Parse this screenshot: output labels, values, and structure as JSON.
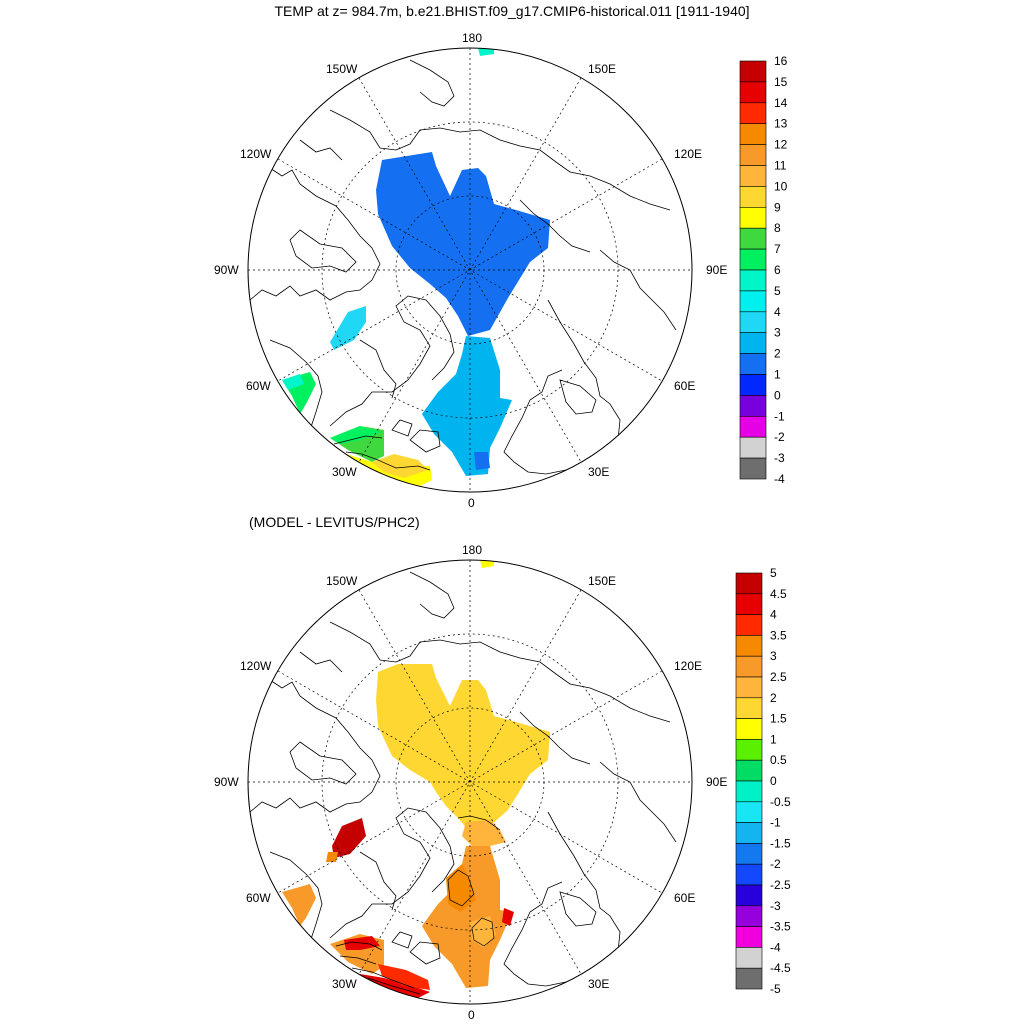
{
  "title": "TEMP at z= 984.7m, b.e21.BHIST.f09_g17.CMIP6-historical.011 [1911-1940]",
  "subtitle": "(MODEL - LEVITUS/PHC2)",
  "longitude_labels": {
    "top": "180",
    "bottom": "0",
    "left": "90W",
    "right": "90E",
    "upper_left_1": "150W",
    "upper_left_2": "120W",
    "upper_right_1": "150E",
    "upper_right_2": "120E",
    "lower_left_1": "60W",
    "lower_left_2": "30W",
    "lower_right_1": "60E",
    "lower_right_2": "30E"
  },
  "colorbar_top": {
    "labels": [
      "16",
      "15",
      "14",
      "13",
      "12",
      "11",
      "10",
      "9",
      "8",
      "7",
      "6",
      "5",
      "4",
      "3",
      "2",
      "1",
      "0",
      "-1",
      "-2",
      "-3",
      "-4"
    ],
    "colors": [
      "#c40000",
      "#e60000",
      "#ff2a00",
      "#f58a00",
      "#f79a2a",
      "#ffb43c",
      "#ffd733",
      "#ffff00",
      "#3fd93f",
      "#00f060",
      "#00f5c8",
      "#00f0f0",
      "#20d8f5",
      "#00b4f0",
      "#1470f0",
      "#0028ff",
      "#7800dc",
      "#e600e6",
      "#d2d2d2",
      "#6e6e6e"
    ]
  },
  "colorbar_bottom": {
    "labels": [
      "5",
      "4.5",
      "4",
      "3.5",
      "3",
      "2.5",
      "2",
      "1.5",
      "1",
      "0.5",
      "0",
      "-0.5",
      "-1",
      "-1.5",
      "-2",
      "-2.5",
      "-3",
      "-3.5",
      "-4",
      "-4.5",
      "-5"
    ],
    "colors": [
      "#c40000",
      "#e60000",
      "#ff2a00",
      "#f58a00",
      "#f79a2a",
      "#ffb43c",
      "#ffd733",
      "#ffff00",
      "#5af000",
      "#00dc64",
      "#00f0c8",
      "#19e6f5",
      "#14b4f0",
      "#1478f0",
      "#1448ff",
      "#2800dc",
      "#9600dc",
      "#f000dc",
      "#d2d2d2",
      "#6e6e6e"
    ]
  }
}
